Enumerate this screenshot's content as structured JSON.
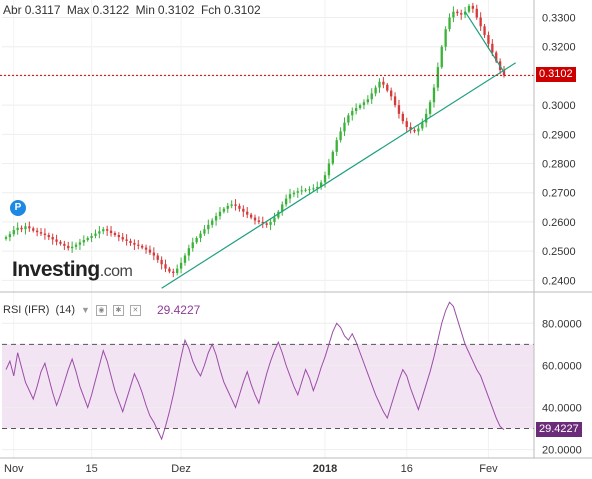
{
  "header": {
    "abr_label": "Abr",
    "abr_value": "0.3117",
    "max_label": "Max",
    "max_value": "0.3122",
    "min_label": "Min",
    "min_value": "0.3102",
    "fch_label": "Fch",
    "fch_value": "0.3102"
  },
  "brand": {
    "name": "Investing",
    "suffix": ".com",
    "badge": "P"
  },
  "rsi_panel": {
    "label": "RSI (IFR)",
    "period": "(14)",
    "value": "29.4227"
  },
  "price_tag": "0.3102",
  "rsi_tag": "29.4227",
  "colors": {
    "up": "#3bb33b",
    "down": "#d63b3b",
    "trendline": "#1fa080",
    "rsi_line": "#9a4ea7",
    "rsi_band": "#f3e4f3",
    "price_line": "#cc0000"
  },
  "chart_data": [
    {
      "type": "candlestick",
      "x_ticks": [
        "Nov",
        "15",
        "Dez",
        "2018",
        "16",
        "Fev"
      ],
      "y_ticks": [
        "0.2400",
        "0.2500",
        "0.2600",
        "0.2700",
        "0.2800",
        "0.2900",
        "0.3000",
        "0.3100",
        "0.3200",
        "0.3300"
      ],
      "ylim": [
        0.236,
        0.336
      ],
      "last_close": 0.3102,
      "closes": [
        0.2548,
        0.2558,
        0.2572,
        0.258,
        0.2575,
        0.2585,
        0.2578,
        0.257,
        0.2565,
        0.256,
        0.2555,
        0.2548,
        0.254,
        0.2532,
        0.2525,
        0.2518,
        0.251,
        0.2515,
        0.2522,
        0.253,
        0.2538,
        0.2545,
        0.2552,
        0.256,
        0.2568,
        0.2575,
        0.257,
        0.2562,
        0.2555,
        0.2548,
        0.254,
        0.2535,
        0.2528,
        0.2522,
        0.2518,
        0.2512,
        0.2505,
        0.2495,
        0.2485,
        0.247,
        0.2455,
        0.244,
        0.243,
        0.2425,
        0.244,
        0.246,
        0.2485,
        0.251,
        0.253,
        0.2545,
        0.256,
        0.2575,
        0.259,
        0.2605,
        0.262,
        0.2635,
        0.2645,
        0.2655,
        0.266,
        0.2655,
        0.2645,
        0.2635,
        0.2625,
        0.2615,
        0.2605,
        0.26,
        0.2595,
        0.259,
        0.26,
        0.2615,
        0.2635,
        0.266,
        0.268,
        0.2695,
        0.27,
        0.2705,
        0.2708,
        0.271,
        0.2712,
        0.2715,
        0.272,
        0.2735,
        0.276,
        0.28,
        0.284,
        0.288,
        0.291,
        0.294,
        0.2965,
        0.298,
        0.299,
        0.3,
        0.301,
        0.302,
        0.304,
        0.306,
        0.308,
        0.307,
        0.305,
        0.303,
        0.3,
        0.297,
        0.2945,
        0.2925,
        0.2915,
        0.291,
        0.292,
        0.294,
        0.297,
        0.301,
        0.306,
        0.313,
        0.32,
        0.326,
        0.33,
        0.332,
        0.3315,
        0.331,
        0.332,
        0.334,
        0.333,
        0.33,
        0.327,
        0.324,
        0.321,
        0.318,
        0.315,
        0.312,
        0.3102
      ]
    },
    {
      "type": "line",
      "name": "RSI (IFR) (14)",
      "y_ticks": [
        "20.0000",
        "40.0000",
        "60.0000",
        "80.0000"
      ],
      "ylim": [
        16,
        92
      ],
      "bands": [
        30,
        70
      ],
      "last_value": 29.4227,
      "values": [
        58,
        62,
        55,
        66,
        59,
        52,
        48,
        44,
        50,
        57,
        61,
        54,
        47,
        41,
        46,
        52,
        58,
        63,
        57,
        50,
        45,
        40,
        46,
        53,
        60,
        67,
        62,
        55,
        48,
        43,
        38,
        44,
        50,
        56,
        52,
        47,
        41,
        36,
        33,
        29,
        25,
        31,
        38,
        46,
        55,
        64,
        72,
        68,
        62,
        58,
        55,
        60,
        66,
        70,
        65,
        58,
        52,
        48,
        44,
        40,
        46,
        52,
        57,
        51,
        46,
        42,
        49,
        56,
        62,
        67,
        71,
        66,
        60,
        55,
        50,
        46,
        52,
        58,
        54,
        48,
        53,
        59,
        64,
        70,
        76,
        80,
        78,
        74,
        72,
        75,
        71,
        66,
        61,
        56,
        51,
        46,
        42,
        38,
        35,
        41,
        47,
        53,
        58,
        55,
        49,
        44,
        39,
        45,
        51,
        57,
        64,
        72,
        80,
        86,
        90,
        88,
        82,
        76,
        70,
        66,
        62,
        58,
        55,
        50,
        45,
        40,
        35,
        31,
        29.4
      ]
    }
  ]
}
